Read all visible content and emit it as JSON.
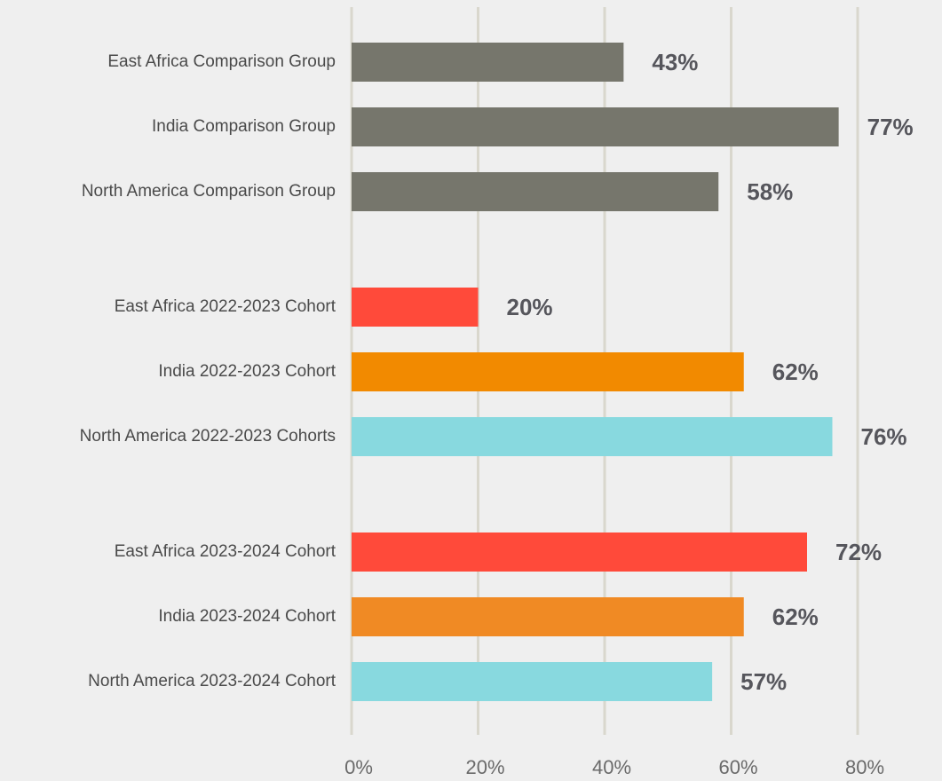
{
  "chart_data": {
    "type": "bar",
    "orientation": "horizontal",
    "categories": [
      "East Africa Comparison Group",
      "India Comparison Group",
      "North America Comparison Group",
      "East Africa 2022-2023 Cohort",
      "India 2022-2023 Cohort",
      "North America 2022-2023 Cohorts",
      "East Africa 2023-2024 Cohort",
      "India 2023-2024 Cohort",
      "North America 2023-2024 Cohort"
    ],
    "values": [
      43,
      77,
      58,
      20,
      62,
      76,
      72,
      62,
      57
    ],
    "value_labels": [
      "43%",
      "77%",
      "58%",
      "20%",
      "62%",
      "76%",
      "72%",
      "62%",
      "57%"
    ],
    "colors": [
      "#76766c",
      "#76766c",
      "#76766c",
      "#ff4a3a",
      "#f28a00",
      "#88d9df",
      "#ff4a3a",
      "#f08a24",
      "#88d9df"
    ],
    "xlim": [
      0,
      80
    ],
    "xticks": [
      {
        "value": 0,
        "label": "0%"
      },
      {
        "value": 20,
        "label": "20%"
      },
      {
        "value": 40,
        "label": "40%"
      },
      {
        "value": 60,
        "label": "60%"
      },
      {
        "value": 80,
        "label": "80%"
      }
    ],
    "grid": true
  }
}
